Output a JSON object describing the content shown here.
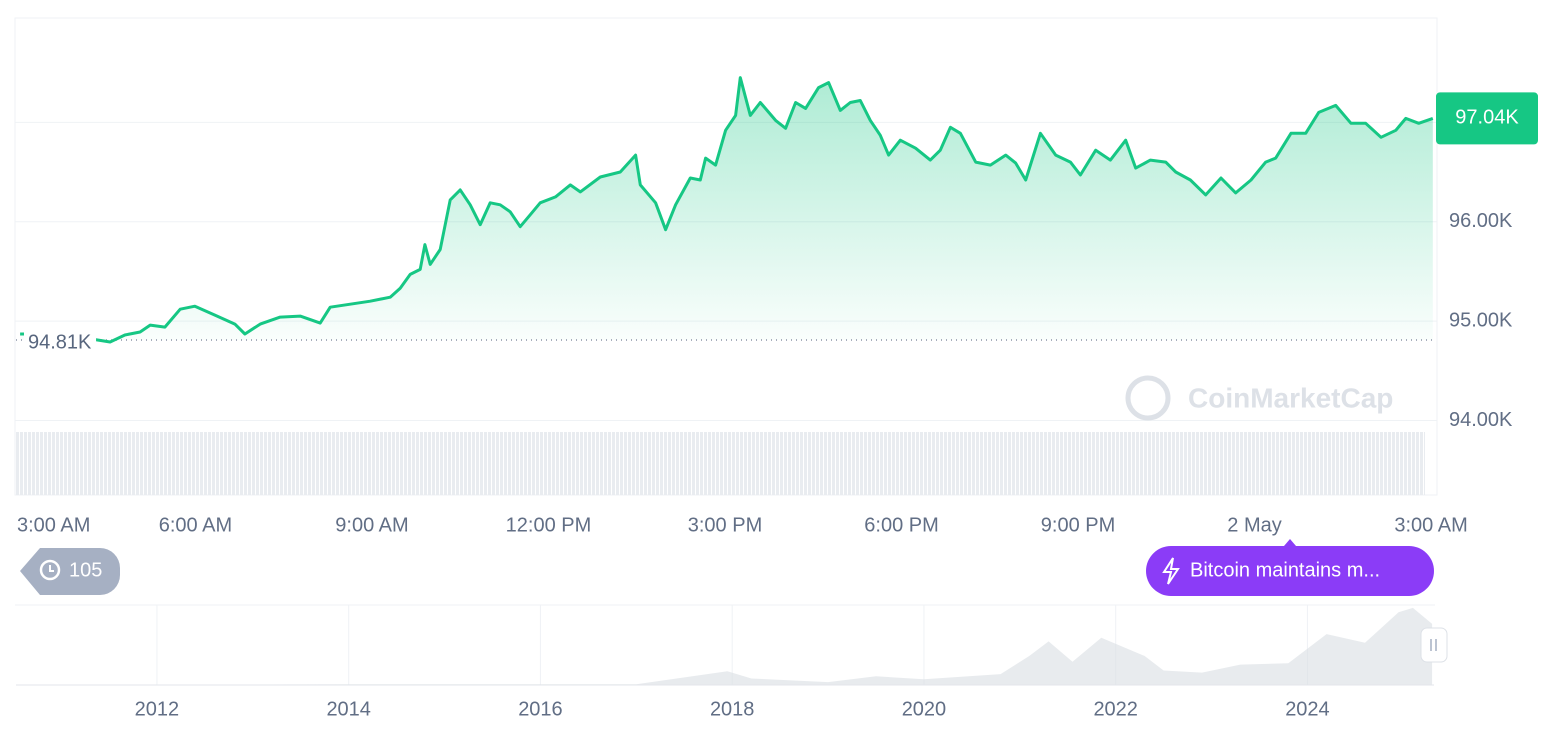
{
  "chart_data": [
    {
      "type": "line",
      "color": "#16c784",
      "x": [
        0.02,
        0.7,
        1.55,
        1.8,
        2.06,
        2.23,
        2.48,
        2.74,
        2.99,
        3.33,
        3.67,
        3.84,
        4.1,
        4.44,
        4.78,
        5.12,
        5.29,
        5.63,
        5.97,
        6.31,
        6.48,
        6.65,
        6.82,
        6.9,
        6.99,
        7.16,
        7.33,
        7.5,
        7.67,
        7.84,
        8.01,
        8.18,
        8.35,
        8.52,
        8.69,
        8.86,
        9.12,
        9.37,
        9.54,
        9.88,
        10.22,
        10.48,
        10.56,
        10.82,
        10.99,
        11.16,
        11.41,
        11.58,
        11.67,
        11.84,
        12.01,
        12.18,
        12.26,
        12.43,
        12.6,
        12.86,
        13.03,
        13.2,
        13.37,
        13.59,
        13.76,
        13.96,
        14.13,
        14.3,
        14.47,
        14.64,
        14.78,
        14.98,
        15.24,
        15.49,
        15.66,
        15.83,
        16.0,
        16.26,
        16.51,
        16.77,
        16.94,
        17.11,
        17.36,
        17.62,
        17.87,
        18.04,
        18.3,
        18.55,
        18.81,
        18.98,
        19.23,
        19.49,
        19.66,
        19.91,
        20.17,
        20.43,
        20.68,
        20.94,
        21.19,
        21.36,
        21.62,
        21.87,
        22.09,
        22.38,
        22.64,
        22.89,
        23.15,
        23.4,
        23.57,
        23.79,
        24.03
      ],
      "values": [
        94870,
        94870,
        94790,
        94860,
        94890,
        94960,
        94940,
        95120,
        95150,
        95060,
        94970,
        94870,
        94970,
        95040,
        95050,
        94980,
        95140,
        95170,
        95200,
        95240,
        95330,
        95470,
        95520,
        95770,
        95570,
        95720,
        96220,
        96320,
        96170,
        95970,
        96190,
        96170,
        96100,
        95950,
        96070,
        96190,
        96250,
        96370,
        96300,
        96450,
        96500,
        96670,
        96370,
        96190,
        95920,
        96170,
        96440,
        96420,
        96640,
        96570,
        96920,
        97070,
        97450,
        97070,
        97200,
        97020,
        96940,
        97200,
        97140,
        97350,
        97400,
        97120,
        97200,
        97220,
        97020,
        96870,
        96670,
        96820,
        96740,
        96620,
        96720,
        96950,
        96890,
        96600,
        96570,
        96670,
        96590,
        96420,
        96890,
        96670,
        96600,
        96470,
        96720,
        96620,
        96820,
        96540,
        96620,
        96600,
        96500,
        96420,
        96270,
        96440,
        96290,
        96420,
        96600,
        96640,
        96890,
        96890,
        97100,
        97170,
        96990,
        96990,
        96850,
        96920,
        97040,
        96990,
        97040
      ],
      "xlim": [
        -0.05,
        24.05
      ],
      "xticks": [
        {
          "value": 0,
          "label": "3:00 AM"
        },
        {
          "value": 3,
          "label": "6:00 AM"
        },
        {
          "value": 6,
          "label": "9:00 AM"
        },
        {
          "value": 9,
          "label": "12:00 PM"
        },
        {
          "value": 12,
          "label": "3:00 PM"
        },
        {
          "value": 15,
          "label": "6:00 PM"
        },
        {
          "value": 18,
          "label": "9:00 PM"
        },
        {
          "value": 21,
          "label": "2 May"
        },
        {
          "value": 24,
          "label": "3:00 AM"
        }
      ],
      "ylim": [
        93250,
        98050
      ],
      "yticks": [
        {
          "value": 94000,
          "label": "94.00K"
        },
        {
          "value": 95000,
          "label": "95.00K"
        },
        {
          "value": 96000,
          "label": "96.00K"
        },
        {
          "value": 97000,
          "label": "97.00K"
        }
      ],
      "grid": true,
      "current_price": {
        "value": 97040,
        "label": "97.04K"
      },
      "reference_price": {
        "value": 94810,
        "label": "94.81K"
      },
      "watermark": "CoinMarketCap",
      "history_badge": "105",
      "news_pill": "Bitcoin maintains m..."
    },
    {
      "type": "area",
      "color": "#d9dde3",
      "x": [
        2010.55,
        2013.9,
        2017.0,
        2017.95,
        2018.2,
        2019.0,
        2019.5,
        2020.0,
        2020.8,
        2021.1,
        2021.3,
        2021.55,
        2021.85,
        2022.3,
        2022.5,
        2022.9,
        2023.3,
        2023.8,
        2024.2,
        2024.6,
        2024.95,
        2025.1,
        2025.3
      ],
      "values": [
        0,
        1000,
        1000,
        19000,
        9000,
        4000,
        12000,
        8000,
        15000,
        40000,
        60000,
        32000,
        65000,
        40000,
        20000,
        17000,
        28000,
        30000,
        70000,
        58000,
        100000,
        106000,
        84000
      ],
      "xlim": [
        2010.53,
        2025.32
      ],
      "xticks": [
        2012,
        2014,
        2016,
        2018,
        2020,
        2022,
        2024
      ],
      "ylim": [
        0,
        110000
      ]
    }
  ]
}
